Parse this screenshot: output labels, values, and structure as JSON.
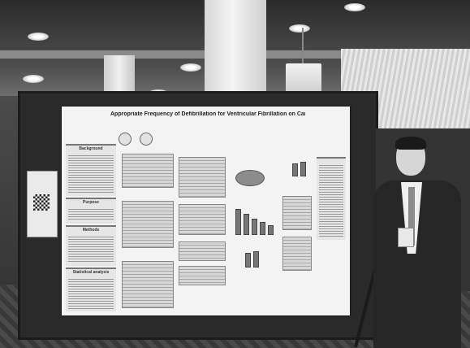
{
  "scene": {
    "kind": "photo",
    "color_mode": "grayscale"
  },
  "poster": {
    "title": "Appropriate Frequency of Defibrillation for Ventricular Fibrillation on Cardiogenic Out-of-Hospital Cardiac Arrest Patients",
    "sections": {
      "background": "Background",
      "purpose": "Purpose",
      "methods": "Methods",
      "statistical_analysis": "Statistical analysis"
    }
  },
  "icons": {
    "logo_left": "university-seal-icon",
    "logo_right": "university-seal-icon",
    "qr": "qr-code-icon"
  }
}
